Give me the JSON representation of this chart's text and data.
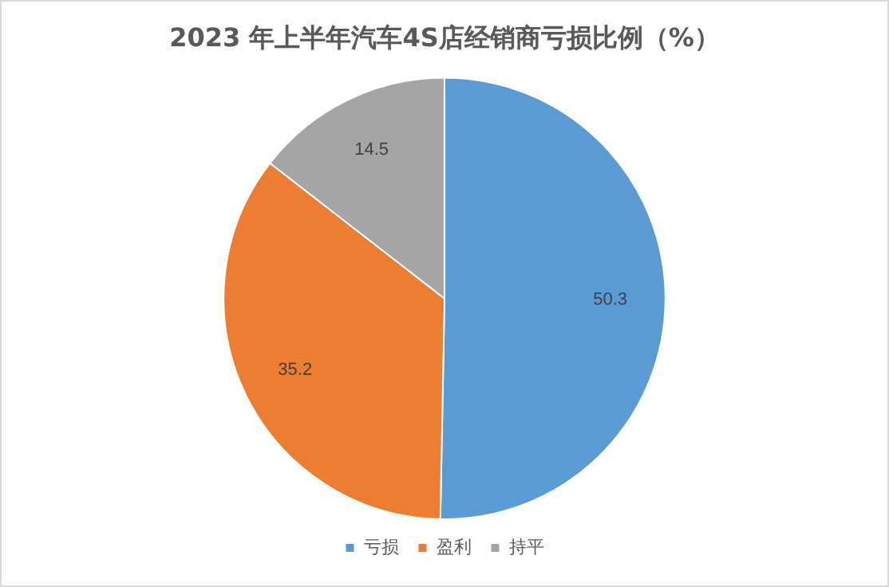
{
  "chart_data": {
    "type": "pie",
    "title": "2023 年上半年汽车4S店经销商亏损比例（%）",
    "categories": [
      "亏损",
      "盈利",
      "持平"
    ],
    "values": [
      50.3,
      35.2,
      14.5
    ],
    "colors": [
      "#5b9bd5",
      "#ed7d31",
      "#a5a5a5"
    ],
    "data_labels": true,
    "legend": "bottom"
  }
}
